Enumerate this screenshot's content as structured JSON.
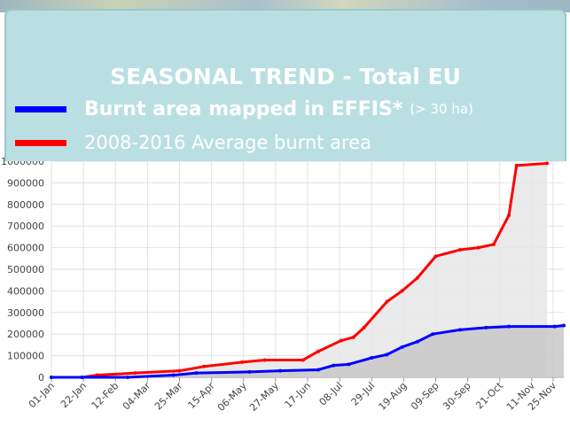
{
  "chart_data": {
    "type": "line",
    "title": "SEASONAL TREND - Total EU",
    "legend_note": "(> 30 ha)",
    "xlim": [
      0,
      336
    ],
    "xticks": [
      {
        "value": 0,
        "label": "01-Jan"
      },
      {
        "value": 21,
        "label": "22-Jan"
      },
      {
        "value": 42,
        "label": "12-Feb"
      },
      {
        "value": 63,
        "label": "04-Mar"
      },
      {
        "value": 84,
        "label": "25-Mar"
      },
      {
        "value": 105,
        "label": "15-Apr"
      },
      {
        "value": 126,
        "label": "06-May"
      },
      {
        "value": 147,
        "label": "27-May"
      },
      {
        "value": 168,
        "label": "17-Jun"
      },
      {
        "value": 189,
        "label": "08-Jul"
      },
      {
        "value": 210,
        "label": "29-Jul"
      },
      {
        "value": 231,
        "label": "19-Aug"
      },
      {
        "value": 252,
        "label": "09-Sep"
      },
      {
        "value": 273,
        "label": "30-Sep"
      },
      {
        "value": 294,
        "label": "21-Oct"
      },
      {
        "value": 315,
        "label": "11-Nov"
      },
      {
        "value": 329,
        "label": "25-Nov"
      }
    ],
    "ylim": [
      0,
      1000000
    ],
    "yticks": [
      0,
      100000,
      200000,
      300000,
      400000,
      500000,
      600000,
      700000,
      800000,
      900000,
      1000000
    ],
    "grid": true,
    "series": [
      {
        "name": "Burnt area mapped in EFFIS*",
        "color": "#0000ff",
        "fill": "#c8c8c8",
        "x": [
          0,
          20,
          50,
          80,
          95,
          130,
          150,
          175,
          185,
          195,
          210,
          220,
          230,
          240,
          250,
          268,
          285,
          300,
          330,
          336
        ],
        "values": [
          0,
          0,
          0,
          10000,
          20000,
          25000,
          30000,
          35000,
          55000,
          60000,
          90000,
          105000,
          140000,
          165000,
          200000,
          220000,
          230000,
          235000,
          235000,
          240000
        ]
      },
      {
        "name": "2008-2016 Average burnt area",
        "color": "#ff0000",
        "fill": "#e6e6e6",
        "x": [
          0,
          20,
          30,
          55,
          84,
          100,
          125,
          140,
          165,
          175,
          190,
          198,
          205,
          220,
          230,
          240,
          252,
          268,
          280,
          290,
          300,
          305,
          325
        ],
        "values": [
          0,
          0,
          10000,
          20000,
          30000,
          50000,
          70000,
          80000,
          80000,
          120000,
          170000,
          185000,
          230000,
          350000,
          400000,
          460000,
          560000,
          590000,
          600000,
          615000,
          750000,
          980000,
          990000
        ]
      }
    ]
  }
}
